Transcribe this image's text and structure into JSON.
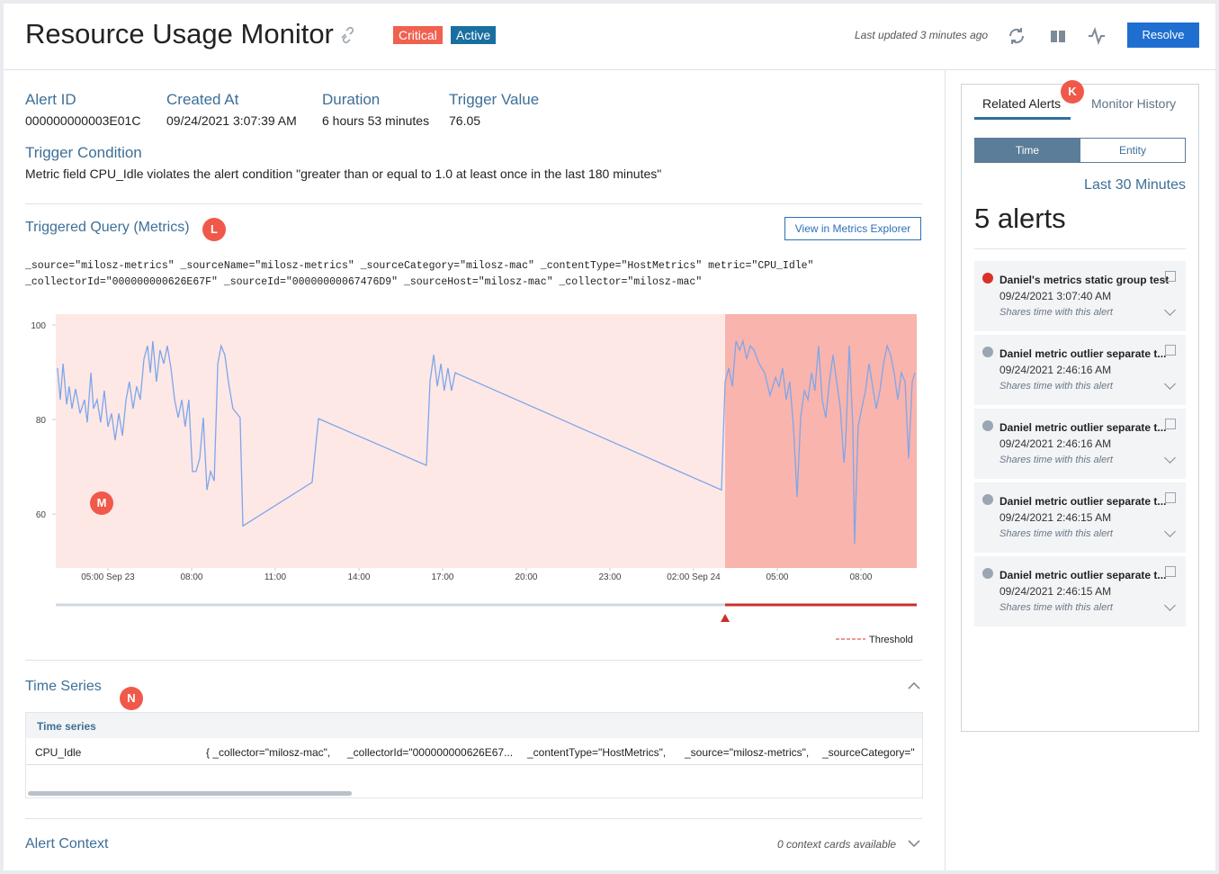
{
  "header": {
    "title": "Resource Usage Monitor",
    "badges": [
      "Critical",
      "Active"
    ],
    "last_updated": "Last updated 3 minutes ago",
    "resolve": "Resolve"
  },
  "details": {
    "fields": [
      {
        "label": "Alert ID",
        "value": "000000000003E01C"
      },
      {
        "label": "Created At",
        "value": "09/24/2021 3:07:39 AM"
      },
      {
        "label": "Duration",
        "value": "6 hours 53 minutes"
      },
      {
        "label": "Trigger Value",
        "value": "76.05"
      }
    ],
    "trigger_condition": {
      "label": "Trigger Condition",
      "value": "Metric field CPU_Idle violates the alert condition \"greater than or equal to 1.0 at least once in the last 180 minutes\""
    }
  },
  "query": {
    "title": "Triggered Query (Metrics)",
    "button": "View in Metrics Explorer",
    "lines": [
      "_source=\"milosz-metrics\" _sourceName=\"milosz-metrics\" _sourceCategory=\"milosz-mac\" _contentType=\"HostMetrics\" metric=\"CPU_Idle\"",
      "_collectorId=\"000000000626E67F\" _sourceId=\"00000000067476D9\" _sourceHost=\"milosz-mac\" _collector=\"milosz-mac\""
    ]
  },
  "chart": {
    "type": "line",
    "color": "#7ea6ea",
    "critical_from": 22.13,
    "threshold_label": "Threshold",
    "ylim": [
      48.6,
      102.3
    ],
    "yticks": [
      60,
      80,
      100
    ],
    "xlim": [
      -1.87,
      29.0
    ],
    "xticks": [
      {
        "value": 0,
        "label": "05:00 Sep 23"
      },
      {
        "value": 3,
        "label": "08:00"
      },
      {
        "value": 6,
        "label": "11:00"
      },
      {
        "value": 9,
        "label": "14:00"
      },
      {
        "value": 12,
        "label": "17:00"
      },
      {
        "value": 15,
        "label": "20:00"
      },
      {
        "value": 18,
        "label": "23:00"
      },
      {
        "value": 21,
        "label": "02:00 Sep 24"
      },
      {
        "value": 24,
        "label": "05:00"
      },
      {
        "value": 27,
        "label": "08:00"
      }
    ],
    "x": [
      -1.81,
      -1.71,
      -1.61,
      -1.48,
      -1.39,
      -1.29,
      -1.16,
      -1.0,
      -0.84,
      -0.74,
      -0.61,
      -0.52,
      -0.39,
      -0.26,
      -0.13,
      0,
      0.13,
      0.26,
      0.39,
      0.52,
      0.65,
      0.77,
      0.9,
      1.03,
      1.16,
      1.29,
      1.42,
      1.52,
      1.61,
      1.74,
      1.87,
      2.0,
      2.13,
      2.26,
      2.39,
      2.52,
      2.65,
      2.77,
      2.9,
      3.03,
      3.16,
      3.29,
      3.42,
      3.55,
      3.68,
      3.81,
      3.94,
      4.06,
      4.19,
      4.32,
      4.48,
      4.74,
      4.84,
      7.32,
      7.55,
      11.42,
      11.55,
      11.68,
      11.81,
      11.94,
      12.06,
      12.19,
      12.32,
      12.45,
      22.0,
      22.13,
      22.26,
      22.39,
      22.52,
      22.65,
      22.77,
      22.9,
      23.03,
      23.16,
      23.35,
      23.55,
      23.74,
      23.94,
      24.06,
      24.19,
      24.32,
      24.45,
      24.58,
      24.71,
      24.84,
      24.97,
      25.1,
      25.23,
      25.35,
      25.48,
      25.61,
      25.74,
      25.87,
      26.0,
      26.13,
      26.26,
      26.39,
      26.45,
      26.58,
      26.71,
      26.77,
      26.9,
      27.03,
      27.16,
      27.29,
      27.42,
      27.55,
      27.68,
      27.81,
      27.94,
      28.06,
      28.19,
      28.32,
      28.45,
      28.58,
      28.71,
      28.84,
      28.94
    ],
    "values": [
      90.9,
      84.2,
      91.8,
      83.2,
      87.0,
      82.3,
      86.5,
      81.3,
      84.2,
      79.4,
      89.9,
      82.3,
      84.2,
      79.4,
      86.1,
      78.5,
      81.3,
      75.6,
      81.3,
      76.6,
      84.2,
      88.0,
      82.3,
      87.0,
      84.2,
      92.8,
      95.6,
      89.9,
      96.6,
      88.0,
      94.7,
      91.8,
      95.6,
      90.9,
      84.2,
      80.4,
      84.2,
      78.5,
      84.2,
      69.0,
      69.0,
      71.8,
      80.4,
      65.1,
      69.0,
      67.0,
      91.8,
      95.6,
      93.7,
      88.0,
      82.3,
      80.4,
      57.5,
      66.7,
      80.2,
      70.3,
      88.0,
      93.7,
      87.0,
      91.8,
      86.1,
      90.9,
      86.1,
      89.9,
      65.1,
      88.0,
      90.9,
      87.0,
      96.6,
      94.7,
      96.6,
      92.8,
      95.6,
      94.7,
      91.8,
      89.9,
      85.1,
      88.9,
      87.0,
      90.9,
      84.2,
      88.0,
      78.5,
      63.6,
      80.4,
      86.1,
      84.2,
      89.9,
      86.1,
      95.6,
      84.2,
      80.4,
      88.0,
      93.7,
      88.0,
      82.3,
      70.9,
      74.7,
      95.6,
      78.5,
      53.7,
      78.5,
      82.3,
      86.1,
      91.8,
      87.0,
      82.3,
      86.1,
      91.8,
      95.6,
      93.7,
      89.9,
      84.2,
      89.9,
      88.0,
      71.8,
      88.0,
      89.9
    ]
  },
  "annotations": {
    "k": "K",
    "l": "L",
    "m": "M",
    "n": "N"
  },
  "time_series": {
    "title": "Time Series",
    "header": "Time series",
    "row": {
      "name": "CPU_Idle",
      "cells": [
        "{ _collector=\"milosz-mac\",",
        "_collectorId=\"000000000626E67...",
        "_contentType=\"HostMetrics\",",
        "_source=\"milosz-metrics\",",
        "_sourceCategory=\""
      ]
    }
  },
  "alert_context": {
    "title": "Alert Context",
    "note": "0 context cards available"
  },
  "sidebar": {
    "tabs": [
      "Related Alerts",
      "Monitor History"
    ],
    "toggle": [
      "Time",
      "Entity"
    ],
    "range": "Last 30 Minutes",
    "count": "5 alerts",
    "alerts": [
      {
        "title": "Daniel's metrics static group test",
        "time": "09/24/2021 3:07:40 AM",
        "note": "Shares time with this alert"
      },
      {
        "title": "Daniel metric outlier separate t...",
        "time": "09/24/2021 2:46:16 AM",
        "note": "Shares time with this alert"
      },
      {
        "title": "Daniel metric outlier separate t...",
        "time": "09/24/2021 2:46:16 AM",
        "note": "Shares time with this alert"
      },
      {
        "title": "Daniel metric outlier separate t...",
        "time": "09/24/2021 2:46:15 AM",
        "note": "Shares time with this alert"
      },
      {
        "title": "Daniel metric outlier separate t...",
        "time": "09/24/2021 2:46:15 AM",
        "note": "Shares time with this alert"
      }
    ]
  }
}
